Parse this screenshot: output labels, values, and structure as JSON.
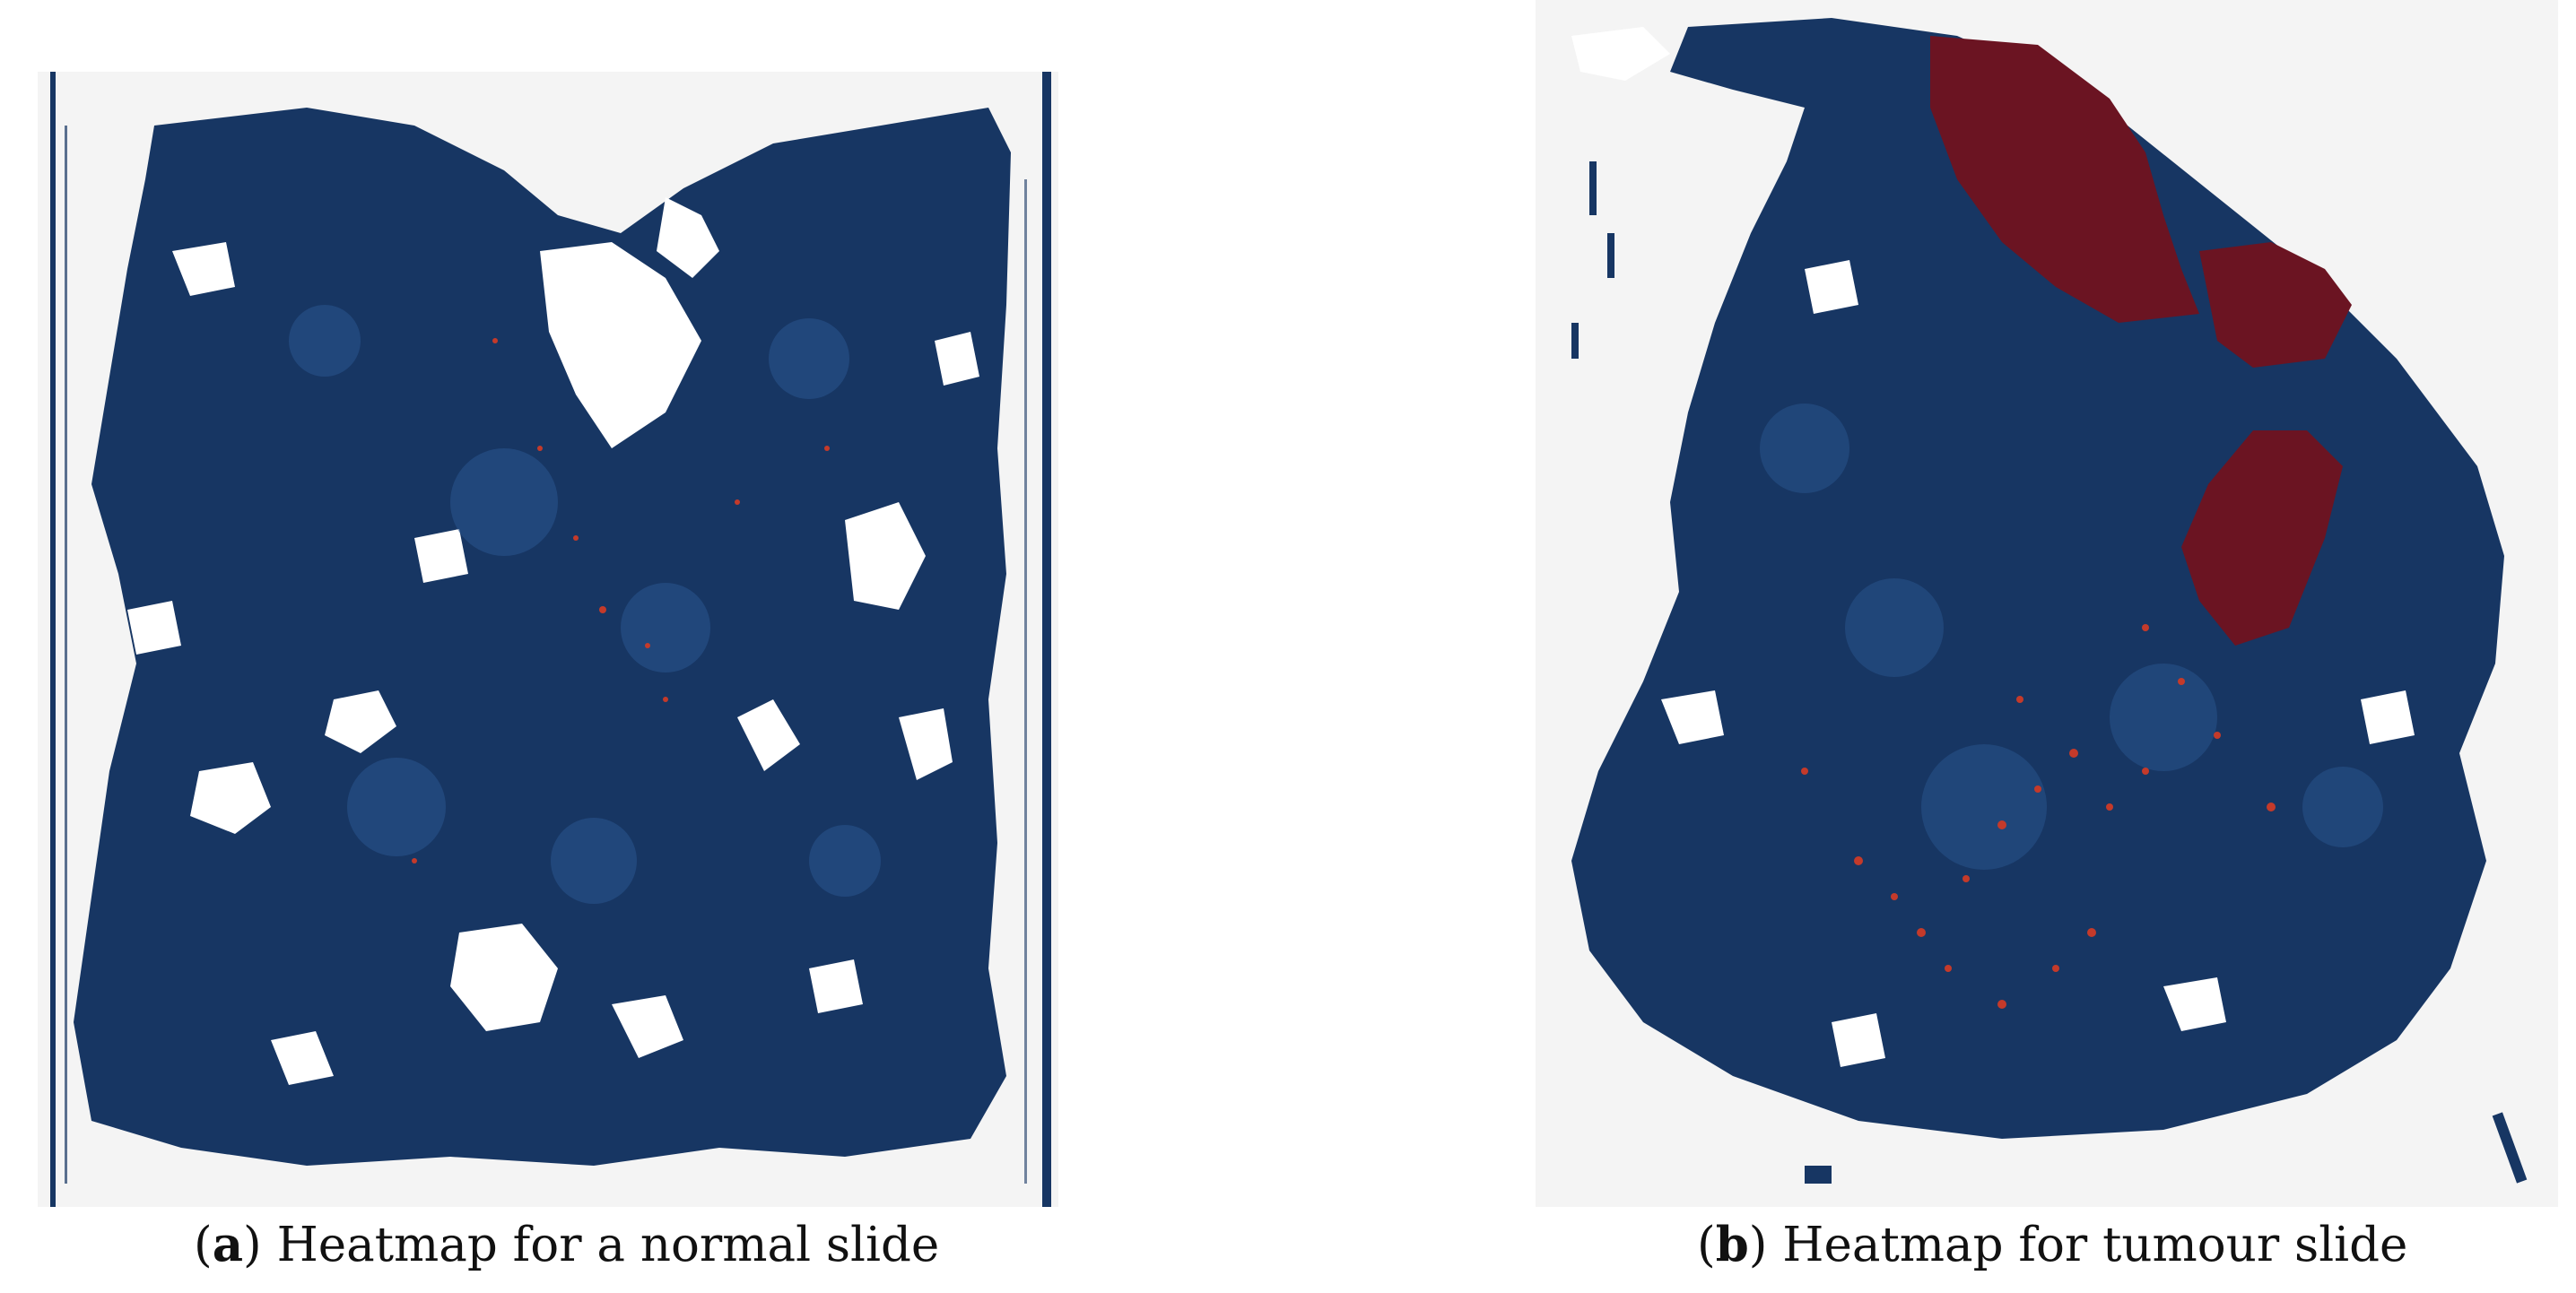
{
  "figure": {
    "panels": [
      {
        "id": "a",
        "label_open": "(",
        "label": "a",
        "label_close": ")",
        "caption": " Heatmap for a normal slide"
      },
      {
        "id": "b",
        "label_open": "(",
        "label": "b",
        "label_close": ")",
        "caption": " Heatmap for tumour slide"
      }
    ]
  },
  "colors": {
    "background": "#f4f4f4",
    "tissue": "#173663",
    "tissue_light": "#2a5590",
    "tumour": "#6b1422",
    "hotspot": "#c43a2a",
    "gap": "#ffffff"
  }
}
